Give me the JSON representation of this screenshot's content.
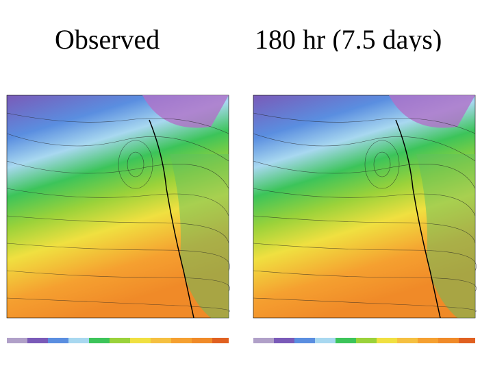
{
  "panels": [
    {
      "title": "Observed"
    },
    {
      "title": "180 hr (7.5 days)"
    }
  ]
}
